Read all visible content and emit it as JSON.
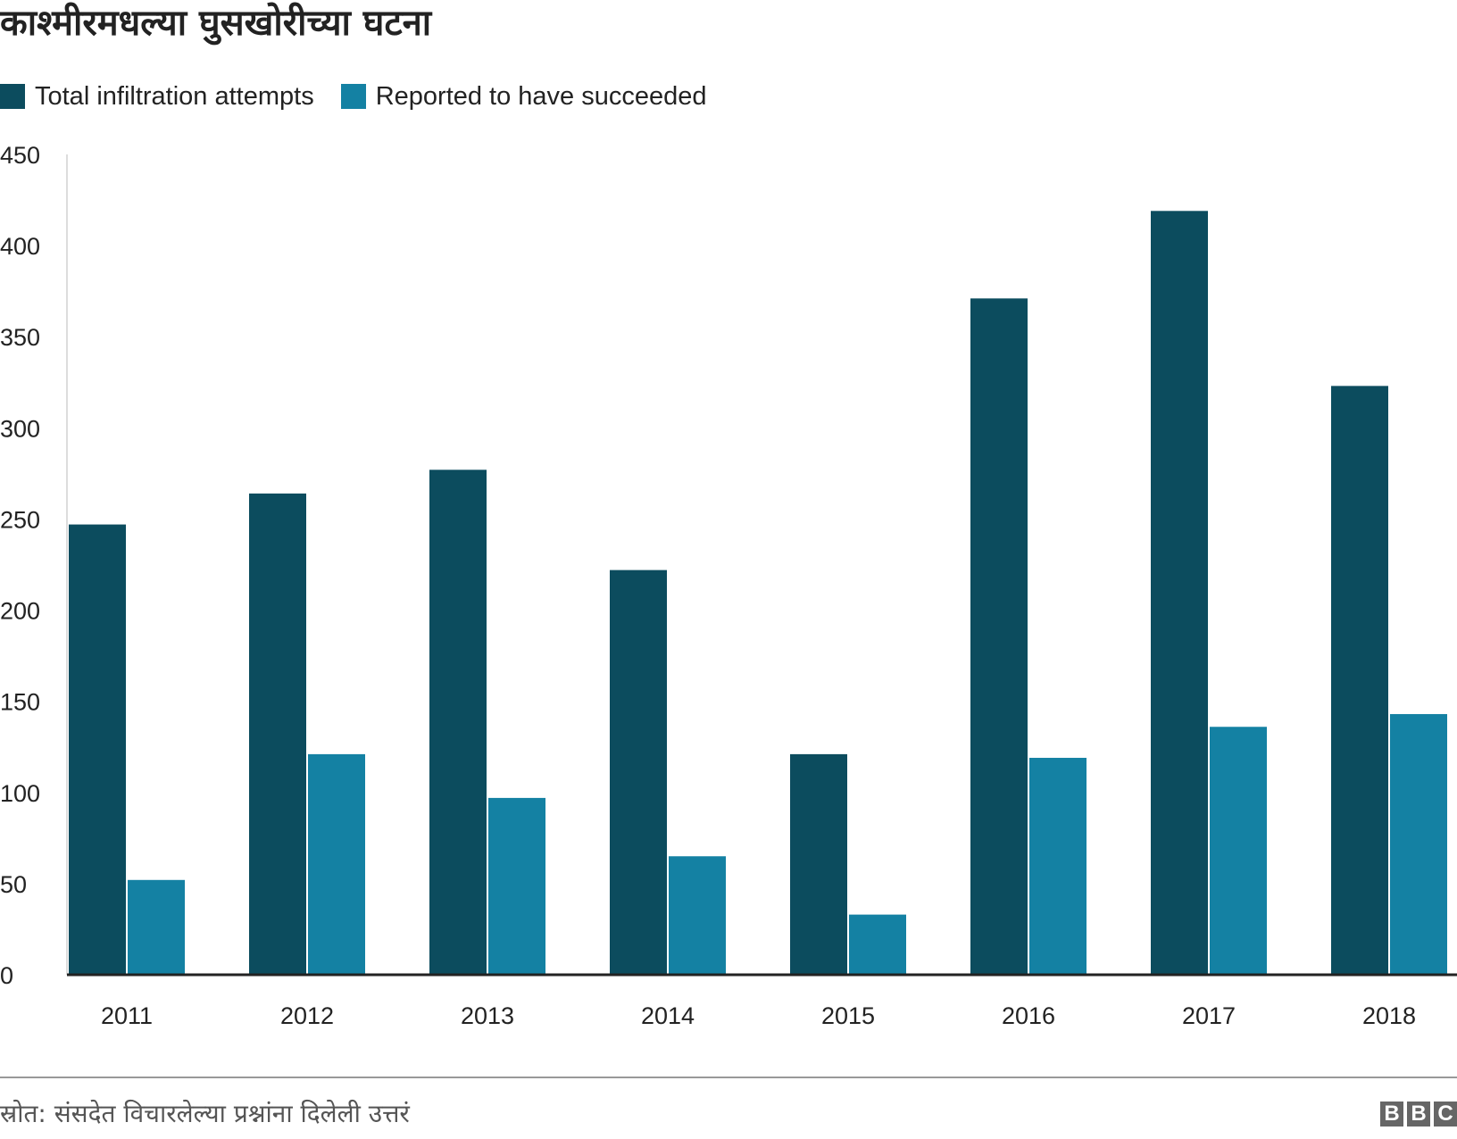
{
  "title": "काश्मीरमधल्या घुसखोरीच्या घटना",
  "legend": [
    {
      "label": "Total infiltration attempts",
      "color": "#0c4c5e"
    },
    {
      "label": "Reported to have succeeded",
      "color": "#1481a3"
    }
  ],
  "chart_data": {
    "type": "bar",
    "categories": [
      "2011",
      "2012",
      "2013",
      "2014",
      "2015",
      "2016",
      "2017",
      "2018"
    ],
    "series": [
      {
        "name": "Total infiltration attempts",
        "values": [
          247,
          264,
          277,
          222,
          121,
          371,
          419,
          323
        ],
        "color": "#0c4c5e"
      },
      {
        "name": "Reported to have succeeded",
        "values": [
          52,
          121,
          97,
          65,
          33,
          119,
          136,
          143
        ],
        "color": "#1481a3"
      }
    ],
    "yticks": [
      "0",
      "50",
      "100",
      "150",
      "200",
      "250",
      "300",
      "350",
      "400",
      "450"
    ],
    "ylim": [
      0,
      450
    ],
    "grid": false,
    "legend_position": "top-left"
  },
  "footer": {
    "source": "स्रोत: संसदेत विचारलेल्या प्रश्नांना दिलेली उत्तरं",
    "logo": [
      "B",
      "B",
      "C"
    ]
  }
}
